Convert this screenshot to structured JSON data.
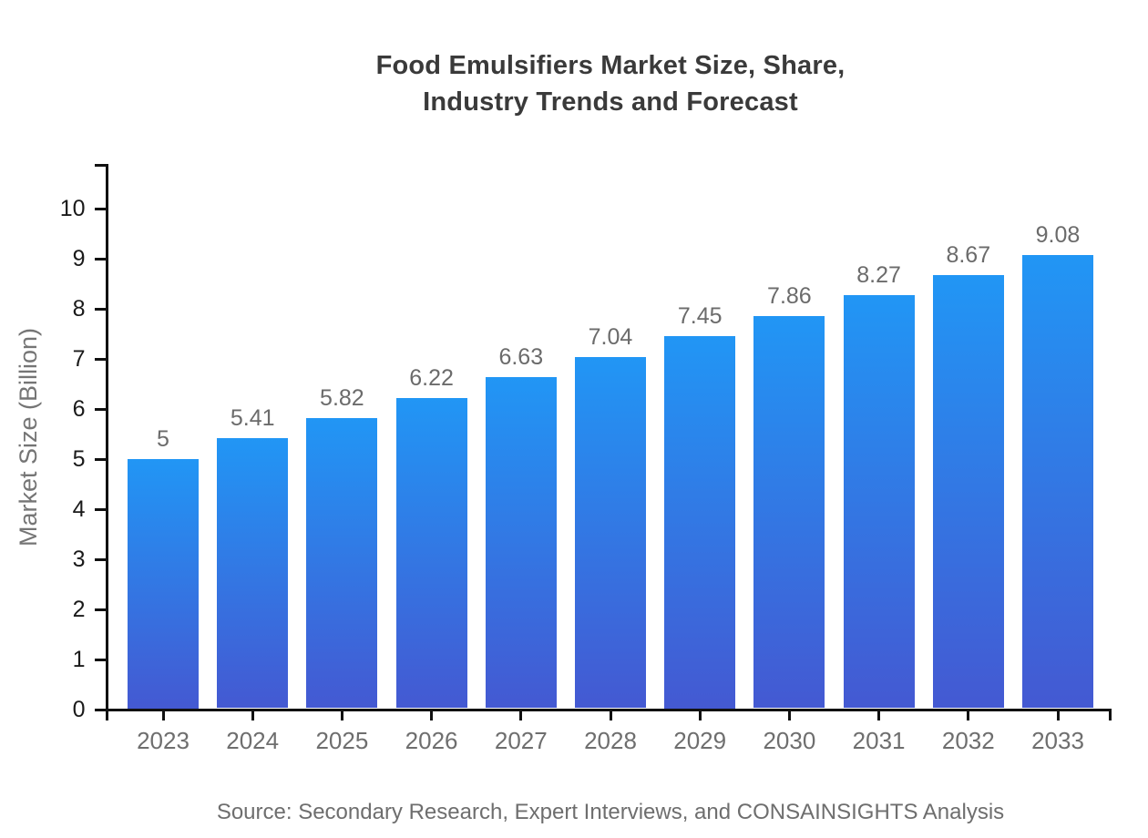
{
  "chart_data": {
    "type": "bar",
    "title_lines": [
      "Food Emulsifiers Market Size, Share,",
      "Industry Trends and Forecast"
    ],
    "categories": [
      "2023",
      "2024",
      "2025",
      "2026",
      "2027",
      "2028",
      "2029",
      "2030",
      "2031",
      "2032",
      "2033"
    ],
    "values": [
      5,
      5.41,
      5.82,
      6.22,
      6.63,
      7.04,
      7.45,
      7.86,
      8.27,
      8.67,
      9.08
    ],
    "value_labels": [
      "5",
      "5.41",
      "5.82",
      "6.22",
      "6.63",
      "7.04",
      "7.45",
      "7.86",
      "8.27",
      "8.67",
      "9.08"
    ],
    "xlabel": "",
    "ylabel": "Market Size (Billion)",
    "ylim": [
      0,
      10
    ],
    "yticks": [
      0,
      1,
      2,
      3,
      4,
      5,
      6,
      7,
      8,
      9,
      10
    ],
    "grid": false,
    "legend": false,
    "source": "Source: Secondary Research, Expert Interviews, and CONSAINSIGHTS Analysis",
    "colors": {
      "bar_gradient_top": "#2196f5",
      "bar_gradient_bottom": "#4459d2",
      "axis": "#111111",
      "y_tick_label": "#1a1a1a",
      "x_tick_label": "#6e6e6e",
      "value_label": "#6b6b6b",
      "title": "#3a3a3a",
      "ylabel_color": "#757575",
      "source_color": "#6e6e6e",
      "background": "#ffffff"
    }
  }
}
